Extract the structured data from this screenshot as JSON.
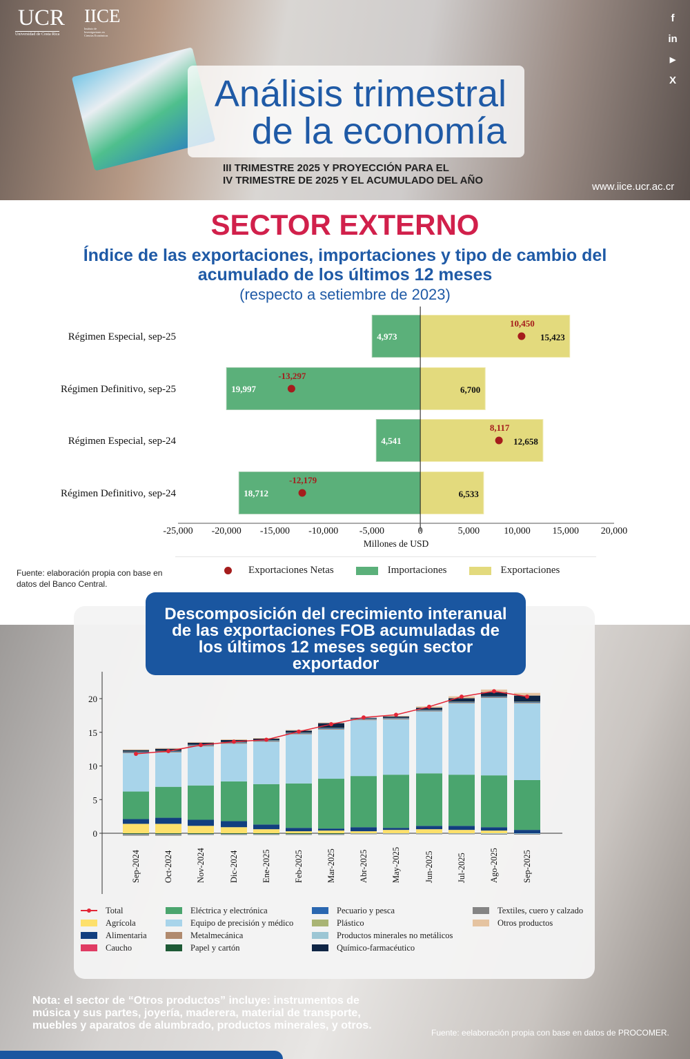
{
  "header": {
    "logo_ucr": "UCR",
    "logo_ucr_sub": "Universidad de Costa Rica",
    "logo_iice": "IICE",
    "logo_iice_sub": "Instituto de Investigaciones en Ciencias Económicas",
    "title_line1": "Análisis trimestral",
    "title_line2": "de la economía",
    "subtitle_line1": "III TRIMESTRE 2025 Y PROYECCIÓN PARA EL",
    "subtitle_line2": "IV TRIMESTRE DE 2025 Y EL ACUMULADO DEL AÑO",
    "url": "www.iice.ucr.ac.cr",
    "social": [
      {
        "icon": "facebook-icon",
        "glyph": "f"
      },
      {
        "icon": "linkedin-icon",
        "glyph": "in"
      },
      {
        "icon": "youtube-icon",
        "glyph": "▶"
      },
      {
        "icon": "x-icon",
        "glyph": "X"
      }
    ]
  },
  "section_title": "SECTOR EXTERNO",
  "chart_data": [
    {
      "type": "bar",
      "orientation": "horizontal",
      "title_line1": "Índice de las exportaciones, importaciones y tipo de cambio del",
      "title_line2": "acumulado de los últimos 12 meses",
      "title_line3": "(respecto a setiembre de 2023)",
      "xlabel": "Millones de USD",
      "xlim": [
        -25000,
        20000
      ],
      "xticks": [
        "-25,000",
        "-20,000",
        "-15,000",
        "-10,000",
        "-5,000",
        "0",
        "5,000",
        "10,000",
        "15,000",
        "20,000"
      ],
      "categories": [
        "Régimen Especial, sep-25",
        "Régimen Definitivo, sep-25",
        "Régimen Especial, sep-24",
        "Régimen Definitivo, sep-24"
      ],
      "series": [
        {
          "name": "Exportaciones Netas",
          "type": "point",
          "color": "#a51c1c",
          "values": [
            10450,
            -13297,
            8117,
            -12179
          ],
          "labels": [
            "10,450",
            "-13,297",
            "8,117",
            "-12,179"
          ]
        },
        {
          "name": "Importaciones",
          "color": "#5bb07a",
          "values": [
            -4973,
            -19997,
            -4541,
            -18712
          ],
          "labels": [
            "4,973",
            "19,997",
            "4,541",
            "18,712"
          ]
        },
        {
          "name": "Exportaciones",
          "color": "#e3da7d",
          "values": [
            15423,
            6700,
            12658,
            6533
          ],
          "labels": [
            "15,423",
            "6,700",
            "12,658",
            "6,533"
          ]
        }
      ],
      "legend_position": "bottom",
      "source": "Fuente: elaboración propia con base en datos del Banco Central."
    },
    {
      "type": "bar",
      "stacked": true,
      "title": "Descomposición del crecimiento interanual de las exportaciones FOB acumuladas de los últimos 12 meses según sector exportador",
      "categories": [
        "Sep-2024",
        "Oct-2024",
        "Nov-2024",
        "Dic-2024",
        "Ene-2025",
        "Feb-2025",
        "Mar-2025",
        "Abr-2025",
        "May-2025",
        "Jun-2025",
        "Jul-2025",
        "Ago-2025",
        "Sep-2025"
      ],
      "ylim": [
        -1,
        24
      ],
      "yticks": [
        "0",
        "5",
        "10",
        "15",
        "20"
      ],
      "line": {
        "name": "Total",
        "color": "#e32636",
        "values": [
          11.8,
          12.2,
          13.1,
          13.6,
          13.9,
          15.1,
          16.2,
          17.2,
          17.6,
          18.8,
          20.3,
          21.1,
          20.3
        ]
      },
      "series": [
        {
          "name": "Agrícola",
          "color": "#fde06b",
          "values": [
            1.4,
            1.4,
            1.1,
            0.9,
            0.6,
            0.3,
            0.4,
            0.3,
            0.5,
            0.6,
            0.5,
            0.4,
            0.0
          ]
        },
        {
          "name": "Alimentaria",
          "color": "#123f7f",
          "values": [
            0.7,
            0.9,
            0.9,
            0.9,
            0.7,
            0.5,
            0.3,
            0.6,
            0.3,
            0.5,
            0.6,
            0.5,
            0.5
          ]
        },
        {
          "name": "Caucho",
          "color": "#e03c64",
          "values": [
            0,
            0,
            0,
            0,
            0,
            0,
            0,
            0,
            0,
            0,
            0,
            0,
            0
          ]
        },
        {
          "name": "Eléctrica y electrónica",
          "color": "#4aa56e",
          "values": [
            4.1,
            4.6,
            5.1,
            5.9,
            6.0,
            6.6,
            7.4,
            7.6,
            7.9,
            7.8,
            7.6,
            7.7,
            7.4
          ]
        },
        {
          "name": "Equipo de precisión y médico",
          "color": "#a8d4ea",
          "values": [
            5.7,
            5.1,
            5.8,
            5.6,
            6.3,
            7.3,
            7.3,
            8.3,
            8.2,
            9.2,
            10.6,
            11.5,
            11.4
          ]
        },
        {
          "name": "Metalmecánica",
          "color": "#b08a6e",
          "values": [
            0.1,
            0.1,
            0.1,
            0.1,
            0.1,
            0.1,
            0.1,
            0.1,
            0.1,
            0.1,
            0.1,
            0.1,
            0.1
          ]
        },
        {
          "name": "Papel y cartón",
          "color": "#1e5a36",
          "values": [
            -0.1,
            -0.1,
            -0.1,
            -0.1,
            -0.1,
            -0.1,
            -0.1,
            0,
            0,
            0,
            0,
            0,
            0
          ]
        },
        {
          "name": "Pecuario y pesca",
          "color": "#2a67b0",
          "values": [
            0.1,
            0.1,
            0.1,
            0.1,
            0.1,
            0.1,
            0.1,
            0.1,
            0.1,
            0.1,
            0.1,
            0.1,
            0.1
          ]
        },
        {
          "name": "Plástico",
          "color": "#a9b474",
          "values": [
            0.05,
            0.05,
            0.05,
            0.05,
            0.05,
            0.05,
            0.05,
            0.05,
            0.05,
            0.05,
            0.05,
            0.05,
            0.05
          ]
        },
        {
          "name": "Productos minerales no metálicos",
          "color": "#9cc6d4",
          "values": [
            -0.05,
            -0.05,
            -0.05,
            -0.05,
            -0.05,
            -0.05,
            -0.05,
            -0.05,
            -0.05,
            -0.05,
            -0.05,
            -0.1,
            -0.1
          ]
        },
        {
          "name": "Químico-farmacéutico",
          "color": "#0f2545",
          "values": [
            0.2,
            0.3,
            0.3,
            0.3,
            0.2,
            0.3,
            0.7,
            0.1,
            0.2,
            0.3,
            0.5,
            0.6,
            0.9
          ]
        },
        {
          "name": "Textiles, cuero y calzado",
          "color": "#848484",
          "values": [
            -0.2,
            -0.2,
            -0.1,
            -0.1,
            -0.1,
            -0.1,
            -0.1,
            -0.1,
            -0.1,
            -0.1,
            -0.1,
            -0.1,
            -0.1
          ]
        },
        {
          "name": "Otros productos",
          "color": "#e5c3a0",
          "values": [
            0.1,
            0.1,
            0.1,
            0.1,
            0.1,
            0.1,
            0.1,
            0.0,
            0.1,
            0.2,
            0.3,
            0.4,
            0.4
          ]
        }
      ],
      "legend_position": "bottom"
    }
  ],
  "nota": "Nota: el sector de “Otros productos” incluye: instrumentos de música y sus partes, joyería, maderera, material de transporte, muebles y aparatos de alumbrado, productos minerales, y otros.",
  "fuente2": "Fuente: eelaboración propia con base en datos de PROCOMER."
}
